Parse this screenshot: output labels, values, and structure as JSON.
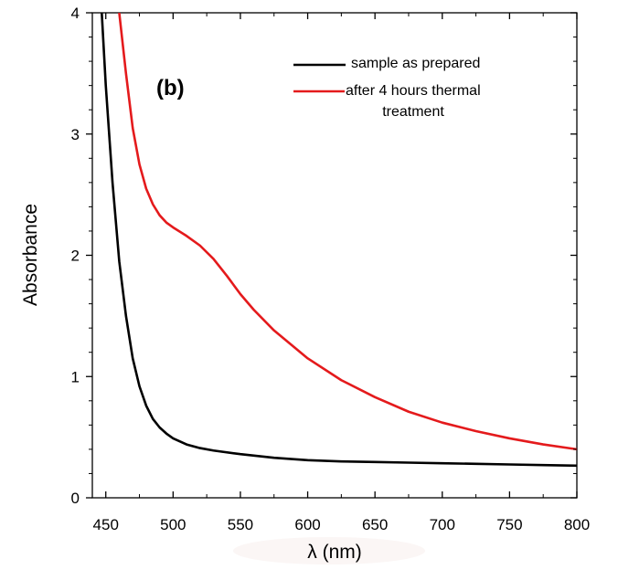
{
  "chart_data": {
    "type": "line",
    "panel_label": "(b)",
    "xlabel": "λ (nm)",
    "ylabel": "Absorbance",
    "xlim": [
      440,
      800
    ],
    "ylim": [
      0,
      4
    ],
    "x_ticks": [
      450,
      500,
      550,
      600,
      650,
      700,
      750,
      800
    ],
    "x_tick_labels": [
      "450",
      "500",
      "550",
      "600",
      "650",
      "700",
      "750",
      "800"
    ],
    "y_ticks": [
      0,
      1,
      2,
      3,
      4
    ],
    "y_tick_labels": [
      "0",
      "1",
      "2",
      "3",
      "4"
    ],
    "grid": false,
    "legend_position": "top-right",
    "series": [
      {
        "name": "sample as prepared",
        "color": "#000000",
        "x": [
          447,
          450,
          455,
          460,
          465,
          470,
          475,
          480,
          485,
          490,
          495,
          500,
          510,
          520,
          530,
          550,
          575,
          600,
          625,
          650,
          675,
          700,
          725,
          750,
          775,
          800
        ],
        "y": [
          4.0,
          3.4,
          2.6,
          1.95,
          1.5,
          1.15,
          0.92,
          0.76,
          0.65,
          0.58,
          0.53,
          0.49,
          0.44,
          0.41,
          0.39,
          0.36,
          0.33,
          0.31,
          0.3,
          0.295,
          0.29,
          0.285,
          0.28,
          0.275,
          0.27,
          0.265
        ]
      },
      {
        "name": "after 4 hours thermal treatment",
        "color": "#e41a1c",
        "x": [
          460,
          465,
          470,
          475,
          480,
          485,
          490,
          495,
          500,
          510,
          520,
          530,
          540,
          550,
          560,
          575,
          600,
          625,
          650,
          675,
          700,
          725,
          750,
          775,
          800
        ],
        "y": [
          4.0,
          3.5,
          3.05,
          2.75,
          2.55,
          2.42,
          2.33,
          2.27,
          2.23,
          2.16,
          2.08,
          1.97,
          1.83,
          1.68,
          1.55,
          1.38,
          1.15,
          0.97,
          0.83,
          0.71,
          0.62,
          0.55,
          0.49,
          0.44,
          0.4
        ]
      }
    ]
  }
}
